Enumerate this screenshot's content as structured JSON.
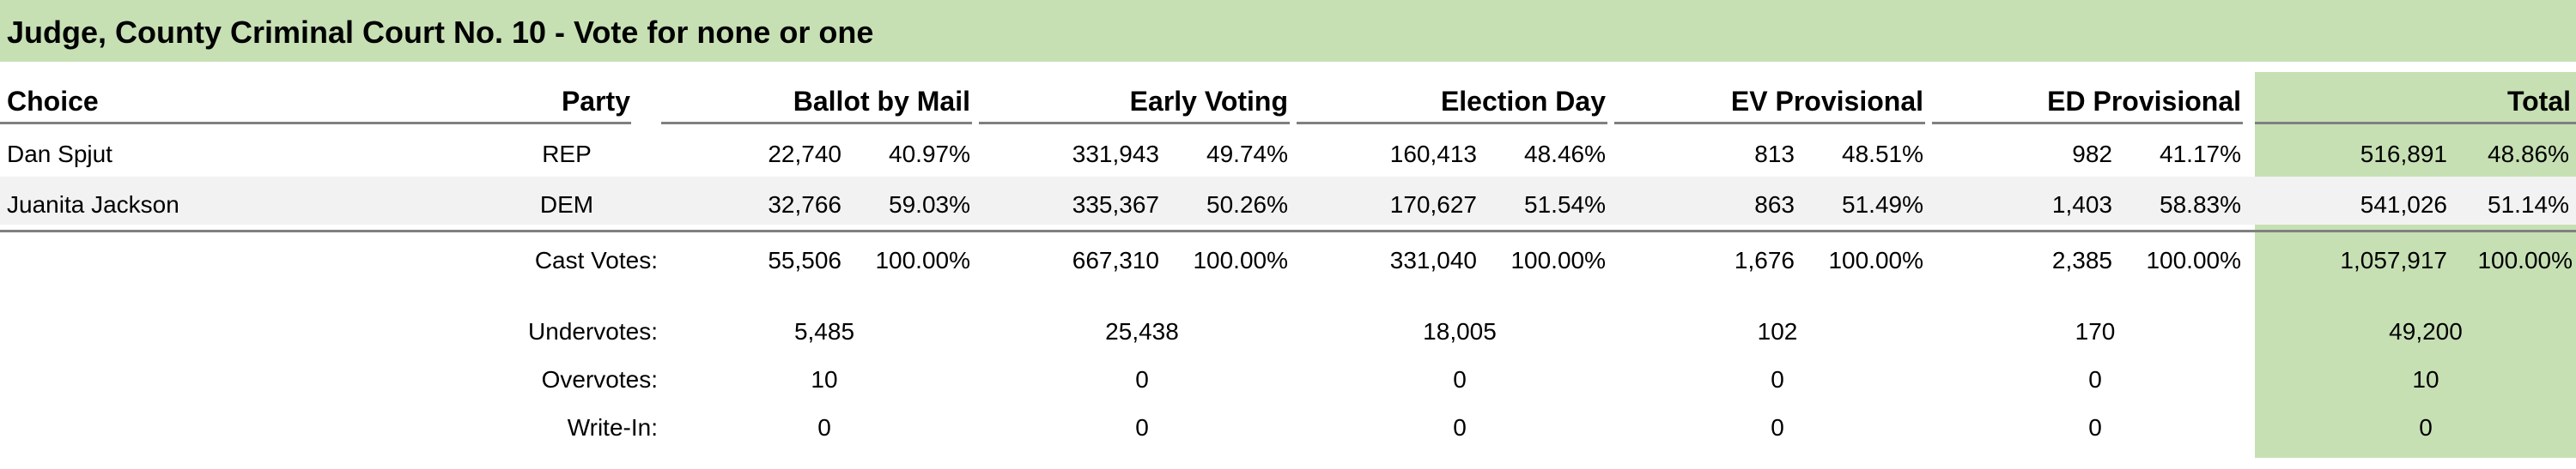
{
  "race": {
    "title": "Judge, County Criminal Court No. 10 - Vote for none or one"
  },
  "header": {
    "choice": "Choice",
    "party": "Party",
    "ballot_by_mail": "Ballot by Mail",
    "early_voting": "Early Voting",
    "election_day": "Election Day",
    "ev_provisional": "EV Provisional",
    "ed_provisional": "ED Provisional",
    "total": "Total"
  },
  "candidates": [
    {
      "name": "Dan Spjut",
      "party": "REP",
      "mail": "22,740",
      "mail_pct": "40.97%",
      "ev": "331,943",
      "ev_pct": "49.74%",
      "ed": "160,413",
      "ed_pct": "48.46%",
      "evp": "813",
      "evp_pct": "48.51%",
      "edp": "982",
      "edp_pct": "41.17%",
      "total": "516,891",
      "total_pct": "48.86%"
    },
    {
      "name": "Juanita Jackson",
      "party": "DEM",
      "mail": "32,766",
      "mail_pct": "59.03%",
      "ev": "335,367",
      "ev_pct": "50.26%",
      "ed": "170,627",
      "ed_pct": "51.54%",
      "evp": "863",
      "evp_pct": "51.49%",
      "edp": "1,403",
      "edp_pct": "58.83%",
      "total": "541,026",
      "total_pct": "51.14%"
    }
  ],
  "cast": {
    "label": "Cast Votes:",
    "mail": "55,506",
    "mail_pct": "100.00%",
    "ev": "667,310",
    "ev_pct": "100.00%",
    "ed": "331,040",
    "ed_pct": "100.00%",
    "evp": "1,676",
    "evp_pct": "100.00%",
    "edp": "2,385",
    "edp_pct": "100.00%",
    "total": "1,057,917",
    "total_pct": "100.00%"
  },
  "undervotes": {
    "label": "Undervotes:",
    "mail": "5,485",
    "ev": "25,438",
    "ed": "18,005",
    "evp": "102",
    "edp": "170",
    "total": "49,200"
  },
  "overvotes": {
    "label": "Overvotes:",
    "mail": "10",
    "ev": "0",
    "ed": "0",
    "evp": "0",
    "edp": "0",
    "total": "10"
  },
  "writein": {
    "label": "Write-In:",
    "mail": "0",
    "ev": "0",
    "ed": "0",
    "evp": "0",
    "edp": "0",
    "total": "0"
  },
  "colors": {
    "accent": "#c6e0b4",
    "stripe": "#f2f2f2",
    "rule": "#808080"
  }
}
